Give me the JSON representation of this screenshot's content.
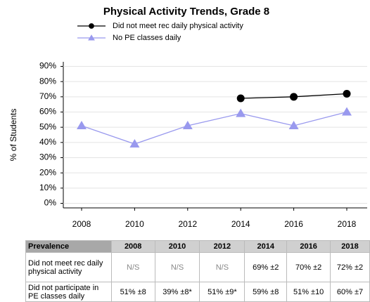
{
  "chart_data": {
    "type": "line",
    "title": "Physical Activity Trends, Grade 8",
    "y_label": "% of Students",
    "categories": [
      "2008",
      "2010",
      "2012",
      "2014",
      "2016",
      "2018"
    ],
    "series": [
      {
        "name": "Did not meet rec daily physical activity",
        "color": "#000000",
        "marker": "circle",
        "values": [
          null,
          null,
          null,
          69,
          70,
          72
        ]
      },
      {
        "name": "No PE classes daily",
        "color": "#9999ee",
        "marker": "triangle",
        "values": [
          51,
          39,
          51,
          59,
          51,
          60
        ]
      }
    ],
    "ylim": [
      -3,
      93
    ],
    "yticks": [
      {
        "value": 0,
        "label": "0%"
      },
      {
        "value": 10,
        "label": "10%"
      },
      {
        "value": 20,
        "label": "20%"
      },
      {
        "value": 30,
        "label": "30%"
      },
      {
        "value": 40,
        "label": "40%"
      },
      {
        "value": 50,
        "label": "50%"
      },
      {
        "value": 60,
        "label": "60%"
      },
      {
        "value": 70,
        "label": "70%"
      },
      {
        "value": 80,
        "label": "80%"
      },
      {
        "value": 90,
        "label": "90%"
      }
    ],
    "grid": true,
    "legend": "top"
  },
  "table": {
    "header": [
      "Prevalence",
      "2008",
      "2010",
      "2012",
      "2014",
      "2016",
      "2018"
    ],
    "rows": [
      [
        "Did not meet rec daily physical activity",
        "N/S",
        "N/S",
        "N/S",
        "69% ±2",
        "70% ±2",
        "72% ±2"
      ],
      [
        "Did not participate in PE classes daily",
        "51% ±8",
        "39% ±8*",
        "51% ±9*",
        "59% ±8",
        "51% ±10",
        "60% ±7"
      ]
    ]
  }
}
